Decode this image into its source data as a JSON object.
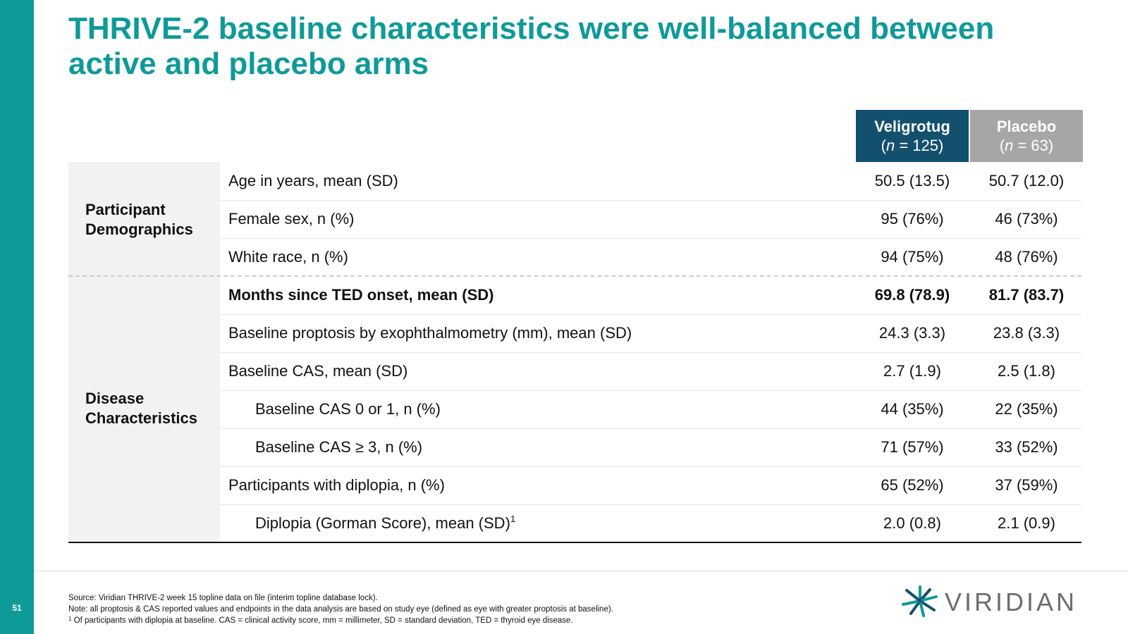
{
  "slide": {
    "page_number": "51",
    "title_line1": "THRIVE-2 baseline characteristics were well-balanced between",
    "title_line2": "active and placebo arms"
  },
  "columns": {
    "active": {
      "name": "Veligrotug",
      "n_var": "n",
      "n_rest": " = 125)"
    },
    "placebo": {
      "name": "Placebo",
      "n_var": "n",
      "n_rest": " = 63)"
    }
  },
  "sections": {
    "demographics": {
      "line1": "Participant",
      "line2": "Demographics"
    },
    "disease": {
      "line1": "Disease",
      "line2": "Characteristics"
    }
  },
  "rows": [
    {
      "label": "Age in years, mean (SD)",
      "active": "50.5 (13.5)",
      "placebo": "50.7 (12.0)"
    },
    {
      "label": "Female sex, n (%)",
      "active": "95 (76%)",
      "placebo": "46 (73%)"
    },
    {
      "label": "White race, n (%)",
      "active": "94 (75%)",
      "placebo": "48 (76%)"
    },
    {
      "label": "Months since TED onset, mean (SD)",
      "active": "69.8 (78.9)",
      "placebo": "81.7 (83.7)"
    },
    {
      "label": "Baseline proptosis by exophthalmometry (mm), mean (SD)",
      "active": "24.3 (3.3)",
      "placebo": "23.8 (3.3)"
    },
    {
      "label": "Baseline CAS, mean (SD)",
      "active": "2.7 (1.9)",
      "placebo": "2.5 (1.8)"
    },
    {
      "label": "Baseline CAS 0 or 1, n (%)",
      "active": "44 (35%)",
      "placebo": "22 (35%)"
    },
    {
      "label": "Baseline CAS ≥ 3, n (%)",
      "active": "71 (57%)",
      "placebo": "33 (52%)"
    },
    {
      "label": "Participants with diplopia, n (%)",
      "active": "65 (52%)",
      "placebo": "37 (59%)"
    },
    {
      "label": "Diplopia (Gorman Score), mean (SD)",
      "label_sup": "1",
      "active": "2.0 (0.8)",
      "placebo": "2.1 (0.9)"
    }
  ],
  "footnotes": {
    "source": "Source: Viridian THRIVE-2 week 15 topline data on file (interim topline database lock).",
    "note": "Note: all proptosis & CAS reported values and endpoints in the data analysis are based on study eye (defined as eye with greater proptosis at baseline).",
    "fn1_sup": "1",
    "fn1": " Of participants with diplopia at baseline. CAS = clinical activity score, mm = millimeter, SD = standard deviation, TED = thyroid eye disease."
  },
  "logo": {
    "text": "VIRIDIAN",
    "icon": "viridian-starburst-icon",
    "colors": [
      "#0e9a99",
      "#13506e",
      "#6d6d6d"
    ]
  }
}
